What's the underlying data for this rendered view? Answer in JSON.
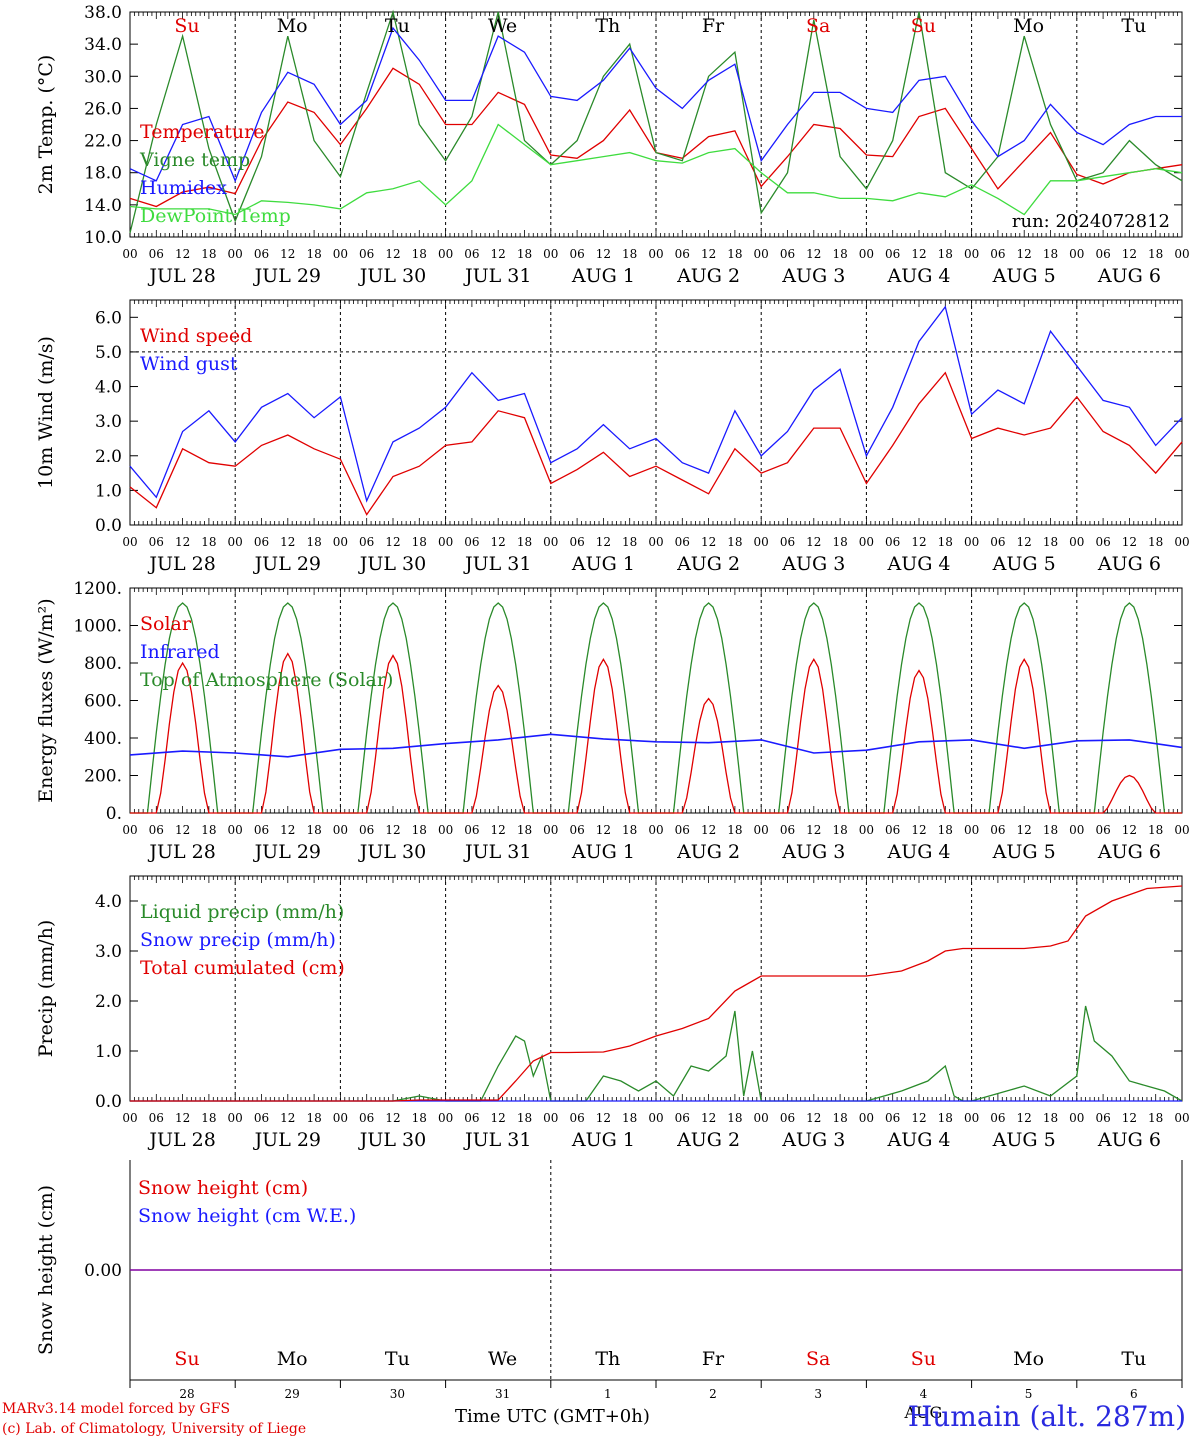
{
  "colors": {
    "red": "#e00000",
    "green": "#2a8a2a",
    "blue": "#1a1aff",
    "light_green": "#3fdc3f",
    "purple": "#8000a0"
  },
  "run_label": "run: 2024072812",
  "footer": {
    "model": "MARv3.14 model forced by GFS",
    "lab": "(c) Lab. of Climatology, University of Liege",
    "time_axis": "Time UTC (GMT+0h)",
    "station": "Humain (alt. 287m)",
    "month": "AUG"
  },
  "chart_data": [
    {
      "type": "line",
      "ylabel": "2m Temp. (°C)",
      "ylim": [
        10,
        38
      ],
      "ytick_labels": [
        "10.0",
        "14.0",
        "18.0",
        "22.0",
        "26.0",
        "30.0",
        "34.0",
        "38.0"
      ],
      "x_unit": "hours from JUL 28 00 UTC",
      "hour_ticks": [
        "00",
        "06",
        "12",
        "18"
      ],
      "day_labels": [
        "JUL 28",
        "JUL 29",
        "JUL 30",
        "JUL 31",
        "AUG  1",
        "AUG  2",
        "AUG  3",
        "AUG  4",
        "AUG  5",
        "AUG  6"
      ],
      "weekday_labels": [
        "Su",
        "Mo",
        "Tu",
        "We",
        "Th",
        "Fr",
        "Sa",
        "Su",
        "Mo",
        "Tu"
      ],
      "weekend_flags": [
        true,
        false,
        false,
        false,
        false,
        false,
        true,
        true,
        false,
        false
      ],
      "series": [
        {
          "name": "Temperature",
          "color": "#e00000",
          "x": [
            0,
            6,
            12,
            18,
            24,
            30,
            36,
            42,
            48,
            54,
            60,
            66,
            72,
            78,
            84,
            90,
            96,
            102,
            108,
            114,
            120,
            126,
            132,
            138,
            144,
            150,
            156,
            162,
            168,
            174,
            180,
            186,
            192,
            198,
            204,
            210,
            216,
            222,
            228,
            234,
            240
          ],
          "y": [
            14.8,
            13.8,
            15.6,
            16.2,
            15.4,
            22,
            26.8,
            25.5,
            21.5,
            26,
            31,
            29,
            24,
            24,
            28,
            26.5,
            20.2,
            19.8,
            22,
            25.8,
            20.5,
            19.8,
            22.5,
            23.2,
            16.3,
            20,
            24,
            23.5,
            20.2,
            20,
            25,
            26,
            21,
            16,
            19.5,
            23,
            17.8,
            16.6,
            18,
            18.5,
            19
          ]
        },
        {
          "name": "Vigne temp",
          "color": "#2a8a2a",
          "x": [
            0,
            6,
            12,
            18,
            24,
            30,
            36,
            42,
            48,
            54,
            60,
            66,
            72,
            78,
            84,
            90,
            96,
            102,
            108,
            114,
            120,
            126,
            132,
            138,
            144,
            150,
            156,
            162,
            168,
            174,
            180,
            186,
            192,
            198,
            204,
            210,
            216,
            222,
            228,
            234,
            240
          ],
          "y": [
            10.5,
            24,
            35,
            21,
            12,
            20,
            35,
            22,
            17.5,
            28,
            38,
            24,
            19.5,
            25,
            38,
            22,
            19,
            22,
            30,
            34,
            20.5,
            19.5,
            30,
            33,
            13,
            18,
            37,
            20,
            16,
            22,
            38,
            18,
            16,
            20,
            35,
            24,
            17,
            18,
            22,
            19,
            17
          ]
        },
        {
          "name": "Humidex",
          "color": "#1a1aff",
          "x": [
            0,
            6,
            12,
            18,
            24,
            30,
            36,
            42,
            48,
            54,
            60,
            66,
            72,
            78,
            84,
            90,
            96,
            102,
            108,
            114,
            120,
            126,
            132,
            138,
            144,
            150,
            156,
            162,
            168,
            174,
            180,
            186,
            192,
            198,
            204,
            210,
            216,
            222,
            228,
            234,
            240
          ],
          "y": [
            18.5,
            17,
            24,
            25,
            17,
            25.5,
            30.5,
            29,
            24,
            27,
            36,
            32,
            27,
            27,
            35,
            33,
            27.5,
            27,
            29.5,
            33.5,
            28.5,
            26,
            29.5,
            31.5,
            19.5,
            24,
            28,
            28,
            26,
            25.5,
            29.5,
            30,
            24.5,
            20,
            22,
            26.5,
            23,
            21.5,
            24,
            25,
            25
          ]
        },
        {
          "name": "DewPoint Temp",
          "color": "#3fdc3f",
          "x": [
            0,
            6,
            12,
            18,
            24,
            30,
            36,
            42,
            48,
            54,
            60,
            66,
            72,
            78,
            84,
            90,
            96,
            102,
            108,
            114,
            120,
            126,
            132,
            138,
            144,
            150,
            156,
            162,
            168,
            174,
            180,
            186,
            192,
            198,
            204,
            210,
            216,
            222,
            228,
            234,
            240
          ],
          "y": [
            13.8,
            13.5,
            13.5,
            13.5,
            12.8,
            14.5,
            14.3,
            14,
            13.5,
            15.5,
            16,
            17,
            14,
            17,
            24,
            21.5,
            19,
            19.5,
            20,
            20.5,
            19.5,
            19.2,
            20.5,
            21,
            18,
            15.5,
            15.5,
            14.8,
            14.8,
            14.5,
            15.5,
            15,
            16.5,
            14.8,
            12.8,
            17,
            17,
            17.5,
            18,
            18.5,
            18
          ]
        }
      ]
    },
    {
      "type": "line",
      "ylabel": "10m Wind (m/s)",
      "ylim": [
        0,
        6.5
      ],
      "ytick_labels": [
        "0.0",
        "1.0",
        "2.0",
        "3.0",
        "4.0",
        "5.0",
        "6.0"
      ],
      "reference_line": 5.0,
      "series": [
        {
          "name": "Wind speed",
          "color": "#e00000",
          "x": [
            0,
            6,
            12,
            18,
            24,
            30,
            36,
            42,
            48,
            54,
            60,
            66,
            72,
            78,
            84,
            90,
            96,
            102,
            108,
            114,
            120,
            126,
            132,
            138,
            144,
            150,
            156,
            162,
            168,
            174,
            180,
            186,
            192,
            198,
            204,
            210,
            216,
            222,
            228,
            234,
            240
          ],
          "y": [
            1.1,
            0.5,
            2.2,
            1.8,
            1.7,
            2.3,
            2.6,
            2.2,
            1.9,
            0.3,
            1.4,
            1.7,
            2.3,
            2.4,
            3.3,
            3.1,
            1.2,
            1.6,
            2.1,
            1.4,
            1.7,
            1.3,
            0.9,
            2.2,
            1.5,
            1.8,
            2.8,
            2.8,
            1.2,
            2.3,
            3.5,
            4.4,
            2.5,
            2.8,
            2.6,
            2.8,
            3.7,
            2.7,
            2.3,
            1.5,
            2.4
          ]
        },
        {
          "name": "Wind gust",
          "color": "#1a1aff",
          "x": [
            0,
            6,
            12,
            18,
            24,
            30,
            36,
            42,
            48,
            54,
            60,
            66,
            72,
            78,
            84,
            90,
            96,
            102,
            108,
            114,
            120,
            126,
            132,
            138,
            144,
            150,
            156,
            162,
            168,
            174,
            180,
            186,
            192,
            198,
            204,
            210,
            216,
            222,
            228,
            234,
            240
          ],
          "y": [
            1.7,
            0.8,
            2.7,
            3.3,
            2.4,
            3.4,
            3.8,
            3.1,
            3.7,
            0.7,
            2.4,
            2.8,
            3.4,
            4.4,
            3.6,
            3.8,
            1.8,
            2.2,
            2.9,
            2.2,
            2.5,
            1.8,
            1.5,
            3.3,
            2.0,
            2.7,
            3.9,
            4.5,
            2.0,
            3.4,
            5.3,
            6.3,
            3.2,
            3.9,
            3.5,
            5.6,
            4.6,
            3.6,
            3.4,
            2.3,
            3.1
          ]
        }
      ]
    },
    {
      "type": "line",
      "ylabel": "Energy fluxes (W/m²)",
      "ylim": [
        0,
        1200
      ],
      "ytick_labels": [
        "0.",
        "200.",
        "400.",
        "600.",
        "800.",
        "1000.",
        "1200."
      ],
      "series": [
        {
          "name": "Solar",
          "color": "#e00000",
          "day_peaks": [
            800,
            850,
            840,
            680,
            820,
            610,
            820,
            760,
            820,
            200
          ]
        },
        {
          "name": "Infrared",
          "color": "#1a1aff",
          "x": [
            0,
            12,
            24,
            36,
            48,
            60,
            72,
            84,
            96,
            108,
            120,
            132,
            144,
            156,
            168,
            180,
            192,
            204,
            216,
            228,
            240
          ],
          "y": [
            310,
            330,
            320,
            300,
            340,
            345,
            370,
            390,
            420,
            395,
            380,
            375,
            390,
            320,
            335,
            380,
            390,
            345,
            385,
            390,
            350
          ]
        },
        {
          "name": "Top of Atmosphere (Solar)",
          "color": "#2a8a2a",
          "day_peak": 1120
        }
      ]
    },
    {
      "type": "line",
      "ylabel": "Precip (mm/h)",
      "ylim": [
        0,
        4.5
      ],
      "ytick_labels": [
        "0.0",
        "1.0",
        "2.0",
        "3.0",
        "4.0"
      ],
      "series": [
        {
          "name": "Liquid precip (mm/h)",
          "color": "#2a8a2a",
          "x": [
            0,
            60,
            66,
            72,
            80,
            84,
            88,
            90,
            92,
            94,
            96,
            100,
            104,
            108,
            112,
            116,
            120,
            124,
            128,
            132,
            136,
            138,
            140,
            142,
            144,
            148,
            168,
            176,
            182,
            186,
            188,
            190,
            192,
            196,
            200,
            204,
            210,
            216,
            218,
            220,
            224,
            228,
            232,
            236,
            240
          ],
          "y": [
            0,
            0,
            0.1,
            0,
            0,
            0.7,
            1.3,
            1.2,
            0.5,
            0.9,
            0,
            0,
            0,
            0.5,
            0.4,
            0.2,
            0.4,
            0.1,
            0.7,
            0.6,
            0.9,
            1.8,
            0.1,
            1.0,
            0,
            0,
            0,
            0.2,
            0.4,
            0.7,
            0.1,
            0,
            0,
            0.1,
            0.2,
            0.3,
            0.1,
            0.5,
            1.9,
            1.2,
            0.9,
            0.4,
            0.3,
            0.2,
            0
          ]
        },
        {
          "name": "Snow precip (mm/h)",
          "color": "#1a1aff",
          "x": [
            0,
            240
          ],
          "y": [
            0,
            0
          ]
        },
        {
          "name": "Total cumulated (cm)",
          "color": "#e00000",
          "x": [
            0,
            60,
            66,
            72,
            84,
            88,
            92,
            96,
            100,
            108,
            114,
            120,
            126,
            132,
            138,
            140,
            144,
            150,
            168,
            176,
            182,
            186,
            190,
            192,
            198,
            204,
            210,
            214,
            218,
            224,
            232,
            240
          ],
          "y": [
            0,
            0,
            0.02,
            0.02,
            0.02,
            0.4,
            0.8,
            0.97,
            0.97,
            0.98,
            1.1,
            1.3,
            1.45,
            1.65,
            2.2,
            2.3,
            2.5,
            2.5,
            2.5,
            2.6,
            2.8,
            3.0,
            3.05,
            3.05,
            3.05,
            3.05,
            3.1,
            3.2,
            3.7,
            4.0,
            4.25,
            4.3
          ]
        }
      ]
    },
    {
      "type": "line",
      "ylabel": "Snow height (cm)",
      "ytick_labels": [
        "0.00"
      ],
      "day_numbers": [
        "28",
        "29",
        "30",
        "31",
        "1",
        "2",
        "3",
        "4",
        "5",
        "6"
      ],
      "series": [
        {
          "name": "Snow height (cm)",
          "color": "#e00000",
          "x": [
            0,
            240
          ],
          "y": [
            0,
            0
          ]
        },
        {
          "name": "Snow height (cm W.E.)",
          "color": "#1a1aff",
          "x": [
            0,
            240
          ],
          "y": [
            0,
            0
          ]
        }
      ]
    }
  ]
}
